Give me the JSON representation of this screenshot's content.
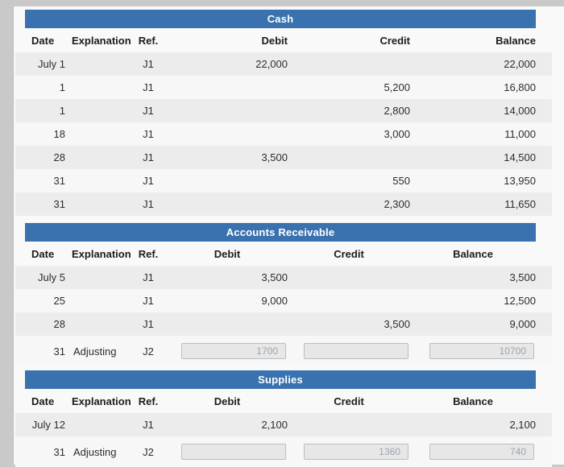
{
  "colors": {
    "title_bar_blue": "#3a72b0",
    "title_text": "#ffffff",
    "row_shade": "#ececec",
    "row_plain": "#f7f7f7",
    "body_text": "#2d2d2d",
    "input_fill": "#e7e7e7",
    "input_border": "#b4bfc7",
    "input_text": "#9aa4ac"
  },
  "tables": [
    {
      "title": "Cash",
      "columns": {
        "date": "Date",
        "explanation": "Explanation",
        "ref": "Ref.",
        "debit": "Debit",
        "credit": "Credit",
        "balance": "Balance"
      },
      "rows": [
        {
          "date": "July 1",
          "explanation": "",
          "ref": "J1",
          "debit": "22,000",
          "credit": "",
          "balance": "22,000"
        },
        {
          "date": "1",
          "explanation": "",
          "ref": "J1",
          "debit": "",
          "credit": "5,200",
          "balance": "16,800"
        },
        {
          "date": "1",
          "explanation": "",
          "ref": "J1",
          "debit": "",
          "credit": "2,800",
          "balance": "14,000"
        },
        {
          "date": "18",
          "explanation": "",
          "ref": "J1",
          "debit": "",
          "credit": "3,000",
          "balance": "11,000"
        },
        {
          "date": "28",
          "explanation": "",
          "ref": "J1",
          "debit": "3,500",
          "credit": "",
          "balance": "14,500"
        },
        {
          "date": "31",
          "explanation": "",
          "ref": "J1",
          "debit": "",
          "credit": "550",
          "balance": "13,950"
        },
        {
          "date": "31",
          "explanation": "",
          "ref": "J1",
          "debit": "",
          "credit": "2,300",
          "balance": "11,650"
        }
      ]
    },
    {
      "title": "Accounts Receivable",
      "columns": {
        "date": "Date",
        "explanation": "Explanation",
        "ref": "Ref.",
        "debit": "Debit",
        "credit": "Credit",
        "balance": "Balance"
      },
      "rows": [
        {
          "date": "July 5",
          "explanation": "",
          "ref": "J1",
          "debit": "3,500",
          "credit": "",
          "balance": "3,500"
        },
        {
          "date": "25",
          "explanation": "",
          "ref": "J1",
          "debit": "9,000",
          "credit": "",
          "balance": "12,500"
        },
        {
          "date": "28",
          "explanation": "",
          "ref": "J1",
          "debit": "",
          "credit": "3,500",
          "balance": "9,000"
        },
        {
          "date": "31",
          "explanation": "Adjusting",
          "ref": "J2",
          "debit_box": "1700",
          "credit_box": "",
          "balance_box": "10700"
        }
      ]
    },
    {
      "title": "Supplies",
      "columns": {
        "date": "Date",
        "explanation": "Explanation",
        "ref": "Ref.",
        "debit": "Debit",
        "credit": "Credit",
        "balance": "Balance"
      },
      "rows": [
        {
          "date": "July 12",
          "explanation": "",
          "ref": "J1",
          "debit": "2,100",
          "credit": "",
          "balance": "2,100"
        },
        {
          "date": "31",
          "explanation": "Adjusting",
          "ref": "J2",
          "debit_box": "",
          "credit_box": "1360",
          "balance_box": "740"
        }
      ]
    }
  ]
}
